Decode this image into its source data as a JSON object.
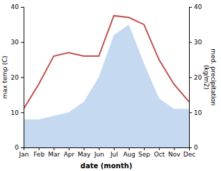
{
  "chart_data": {
    "type": "line",
    "categories": [
      "Jan",
      "Feb",
      "Mar",
      "Apr",
      "May",
      "Jun",
      "Jul",
      "Aug",
      "Sep",
      "Oct",
      "Nov",
      "Dec"
    ],
    "series": [
      {
        "type": "area",
        "axis": "y2",
        "color": "#c5d9f1",
        "values": [
          8,
          8,
          9,
          10,
          13,
          20,
          32,
          35,
          24,
          14,
          11,
          11
        ]
      },
      {
        "type": "line",
        "color": "#c0504d",
        "values": [
          11,
          18,
          26,
          27,
          26,
          26,
          37.5,
          37,
          35,
          25,
          18,
          13
        ]
      }
    ],
    "xlabel": "date (month)",
    "ylabel": "max temp (C)",
    "y2label": "med. precipitation\n(kg/m2)",
    "ylim": [
      0,
      40
    ],
    "yticks": [
      0,
      10,
      20,
      30,
      40
    ],
    "y2lim": [
      0,
      40
    ],
    "y2ticks": [
      0,
      10,
      20,
      30,
      40
    ],
    "grid": false
  }
}
